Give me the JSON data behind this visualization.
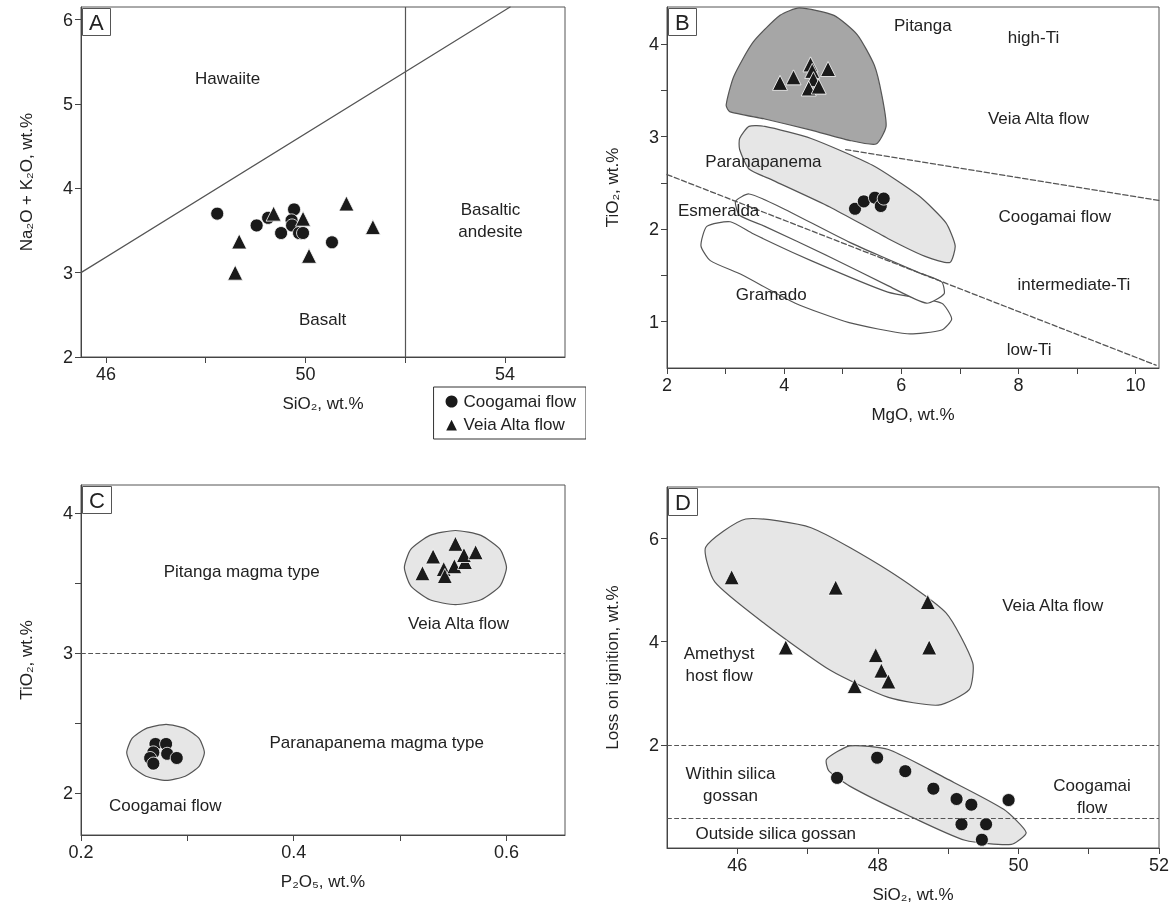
{
  "chart_data": [
    {
      "type": "scatter",
      "title": "A",
      "xlabel": "SiO₂, wt.%",
      "ylabel": "Na₂O + K₂O, wt.%",
      "xlim": [
        45.5,
        55.2
      ],
      "ylim": [
        2,
        6.15
      ],
      "xticks": [
        46,
        {
          "value": 48,
          "label": null
        },
        50,
        {
          "value": 52,
          "label": null
        },
        54
      ],
      "yticks": [
        2,
        3,
        4,
        5,
        6
      ],
      "grid": false,
      "legend": "bottom right",
      "series": [
        {
          "type": "line",
          "color": "#555555",
          "line_style": "solid",
          "marker": "none",
          "x": [
            45.5,
            54.1
          ],
          "values": [
            3.0,
            6.15
          ]
        },
        {
          "name": "Coogamai flow",
          "color": "#1a1a1a",
          "marker": "circle",
          "x": [
            48.23,
            49.02,
            49.25,
            49.77,
            49.72,
            49.73,
            49.51,
            49.87,
            49.95,
            50.53
          ],
          "values": [
            3.7,
            3.56,
            3.65,
            3.75,
            3.62,
            3.56,
            3.47,
            3.47,
            3.47,
            3.36
          ]
        },
        {
          "name": "Veia Alta flow",
          "color": "#1a1a1a",
          "marker": "triangle",
          "x": [
            48.67,
            48.59,
            49.36,
            49.95,
            50.07,
            50.82,
            51.35
          ],
          "values": [
            3.37,
            3.0,
            3.7,
            3.64,
            3.2,
            3.82,
            3.54
          ]
        }
      ],
      "ref_lines": [
        {
          "axis": "x",
          "value": 52,
          "color": "#555555",
          "line_style": "solid"
        }
      ],
      "annotations": [
        "Hawaiite",
        "Basalt",
        "Basaltic\nandesite"
      ]
    },
    {
      "type": "scatter",
      "title": "B",
      "xlabel": "MgO, wt.%",
      "ylabel": "TiO₂, wt.%",
      "xlim": [
        2,
        10.4
      ],
      "ylim": [
        0.5,
        4.4
      ],
      "xticks": [
        2,
        {
          "value": 3,
          "label": null
        },
        4,
        {
          "value": 5,
          "label": null
        },
        6,
        {
          "value": 7,
          "label": null
        },
        8,
        {
          "value": 9,
          "label": null
        },
        10
      ],
      "yticks": [
        1,
        {
          "value": 1.5,
          "label": null
        },
        2,
        {
          "value": 2.5,
          "label": null
        },
        3,
        {
          "value": 3.5,
          "label": null
        },
        4
      ],
      "grid": false,
      "series": [
        {
          "type": "area",
          "color": "#ffffff",
          "x": [
            2.68,
            3.08,
            3.47,
            4.46,
            5.77,
            6.69,
            6.86,
            6.69,
            6.1,
            5.11,
            4.19,
            3.27,
            2.74,
            2.58
          ],
          "values": [
            2.03,
            2.08,
            1.95,
            1.66,
            1.32,
            1.2,
            1.03,
            0.91,
            0.87,
            0.99,
            1.2,
            1.51,
            1.66,
            1.82
          ]
        },
        {
          "type": "area",
          "color": "#ffffff",
          "x": [
            3.17,
            3.4,
            3.93,
            5.11,
            6.3,
            6.69,
            6.73,
            6.43,
            5.77,
            4.78,
            3.67,
            3.24
          ],
          "values": [
            2.3,
            2.38,
            2.24,
            1.86,
            1.53,
            1.43,
            1.3,
            1.2,
            1.39,
            1.7,
            2.03,
            2.15
          ]
        },
        {
          "type": "area",
          "color": "#e6e6e6",
          "x": [
            3.24,
            3.4,
            3.67,
            4.46,
            5.51,
            6.3,
            6.76,
            6.92,
            6.83,
            6.43,
            5.77,
            4.78,
            3.8,
            3.4,
            3.24
          ],
          "values": [
            2.98,
            3.11,
            3.11,
            2.98,
            2.69,
            2.36,
            2.07,
            1.82,
            1.64,
            1.7,
            1.9,
            2.24,
            2.53,
            2.65,
            2.86
          ]
        },
        {
          "type": "area",
          "color": "#a6a6a6",
          "x": [
            3.01,
            3.14,
            3.47,
            3.93,
            4.26,
            4.85,
            5.25,
            5.54,
            5.67,
            5.74,
            5.57,
            5.11,
            4.46,
            3.67,
            3.07
          ],
          "values": [
            3.34,
            3.65,
            4.02,
            4.31,
            4.39,
            4.31,
            4.1,
            3.77,
            3.44,
            3.11,
            2.92,
            2.96,
            3.07,
            3.19,
            3.27
          ]
        },
        {
          "type": "line",
          "color": "#555555",
          "line_style": "dashed",
          "marker": "none",
          "x": [
            5.05,
            10.4
          ],
          "values": [
            2.86,
            2.31
          ]
        },
        {
          "type": "line",
          "color": "#555555",
          "line_style": "dashed",
          "marker": "none",
          "x": [
            2,
            10.35
          ],
          "values": [
            2.59,
            0.53
          ]
        },
        {
          "color": "#1a1a1a",
          "marker": "circle",
          "x": [
            5.21,
            5.36,
            5.55,
            5.65,
            5.7
          ],
          "values": [
            2.22,
            2.3,
            2.34,
            2.25,
            2.33
          ]
        },
        {
          "color": "#1a1a1a",
          "marker": "triangle",
          "x": [
            3.93,
            4.16,
            4.45,
            4.48,
            4.5,
            4.42,
            4.59,
            4.75
          ],
          "values": [
            3.58,
            3.64,
            3.78,
            3.71,
            3.62,
            3.52,
            3.54,
            3.73
          ]
        }
      ],
      "annotations": [
        "Pitanga",
        "high-Ti",
        "Veia Alta flow",
        "Paranapanema",
        "Coogamai flow",
        "Esmeralda",
        "intermediate-Ti",
        "Gramado",
        "low-Ti"
      ]
    },
    {
      "type": "scatter",
      "title": "C",
      "xlabel": "P₂O₅, wt.%",
      "ylabel": "TiO₂, wt.%",
      "xlim": [
        0.2,
        0.655
      ],
      "ylim": [
        1.7,
        4.2
      ],
      "xticks": [
        0.2,
        {
          "value": 0.3,
          "label": null
        },
        0.4,
        {
          "value": 0.5,
          "label": null
        },
        0.6
      ],
      "yticks": [
        2,
        {
          "value": 2.5,
          "label": null
        },
        3,
        {
          "value": 3.5,
          "label": null
        },
        4
      ],
      "grid": false,
      "series": [
        {
          "type": "area",
          "color": "#e6e6e6",
          "x": [
            0.6,
            0.594,
            0.576,
            0.552,
            0.528,
            0.51,
            0.504,
            0.51,
            0.528,
            0.552,
            0.576,
            0.594
          ],
          "values": [
            3.61,
            3.74,
            3.84,
            3.875,
            3.84,
            3.74,
            3.61,
            3.48,
            3.38,
            3.345,
            3.38,
            3.48
          ]
        },
        {
          "type": "area",
          "color": "#e6e6e6",
          "x": [
            0.316,
            0.311,
            0.298,
            0.28,
            0.261,
            0.248,
            0.243,
            0.248,
            0.261,
            0.28,
            0.298,
            0.311
          ],
          "values": [
            2.29,
            2.39,
            2.46,
            2.49,
            2.46,
            2.39,
            2.29,
            2.19,
            2.12,
            2.09,
            2.12,
            2.19
          ]
        },
        {
          "color": "#1a1a1a",
          "marker": "circle",
          "x": [
            0.27,
            0.28,
            0.268,
            0.265,
            0.268,
            0.281,
            0.29
          ],
          "values": [
            2.35,
            2.35,
            2.29,
            2.25,
            2.21,
            2.28,
            2.25
          ]
        },
        {
          "color": "#1a1a1a",
          "marker": "triangle",
          "x": [
            0.521,
            0.531,
            0.552,
            0.541,
            0.542,
            0.551,
            0.561,
            0.56,
            0.571
          ],
          "values": [
            3.57,
            3.69,
            3.78,
            3.6,
            3.55,
            3.62,
            3.65,
            3.7,
            3.72
          ]
        }
      ],
      "ref_lines": [
        {
          "axis": "y",
          "value": 3,
          "color": "#555555",
          "line_style": "dashed"
        }
      ],
      "annotations": [
        "Pitanga magma type",
        "Veia Alta flow",
        "Paranapanema magma type",
        "Coogamai flow"
      ]
    },
    {
      "type": "scatter",
      "title": "D",
      "xlabel": "SiO₂, wt.%",
      "ylabel": "Loss on ignition, wt.%",
      "xlim": [
        45,
        52
      ],
      "ylim": [
        0,
        7
      ],
      "xticks": [
        46,
        {
          "value": 47,
          "label": null
        },
        48,
        {
          "value": 49,
          "label": null
        },
        50,
        {
          "value": 51,
          "label": null
        },
        52
      ],
      "yticks": [
        2,
        4,
        6
      ],
      "grid": false,
      "series": [
        {
          "type": "area",
          "color": "#e6e6e6",
          "x": [
            45.55,
            46.12,
            47.05,
            48.15,
            48.97,
            49.35,
            49.3,
            48.86,
            48.15,
            47.33,
            46.4,
            45.68
          ],
          "values": [
            5.83,
            6.38,
            6.21,
            5.38,
            4.56,
            3.59,
            3.07,
            2.77,
            2.92,
            3.44,
            4.34,
            5.16
          ]
        },
        {
          "type": "area",
          "color": "#e6e6e6",
          "x": [
            47.27,
            47.6,
            48.15,
            48.97,
            49.79,
            50.11,
            49.9,
            49.24,
            48.42,
            47.6,
            47.3
          ],
          "values": [
            1.72,
            1.98,
            1.91,
            1.35,
            0.75,
            0.3,
            0.07,
            0.15,
            0.64,
            1.2,
            1.5
          ]
        },
        {
          "color": "#1a1a1a",
          "marker": "circle",
          "x": [
            47.42,
            47.99,
            48.39,
            48.79,
            49.12,
            49.33,
            49.86,
            49.19,
            49.54,
            49.48
          ],
          "values": [
            1.36,
            1.75,
            1.49,
            1.15,
            0.95,
            0.84,
            0.93,
            0.46,
            0.46,
            0.16
          ]
        },
        {
          "color": "#1a1a1a",
          "marker": "triangle",
          "x": [
            45.92,
            47.4,
            48.71,
            46.69,
            48.73,
            47.97,
            48.05,
            48.15,
            47.67
          ],
          "values": [
            5.25,
            5.05,
            4.77,
            3.89,
            3.89,
            3.74,
            3.44,
            3.23,
            3.14
          ]
        }
      ],
      "ref_lines": [
        {
          "axis": "y",
          "value": 2,
          "color": "#555555",
          "line_style": "dashed"
        },
        {
          "axis": "y",
          "value": 0.58,
          "color": "#555555",
          "line_style": "dashed"
        }
      ],
      "annotations": [
        "Veia Alta flow",
        "Amethyst\nhost flow",
        "Within silica\ngossan",
        "Coogamai\nflow",
        "Outside silica gossan"
      ]
    }
  ]
}
